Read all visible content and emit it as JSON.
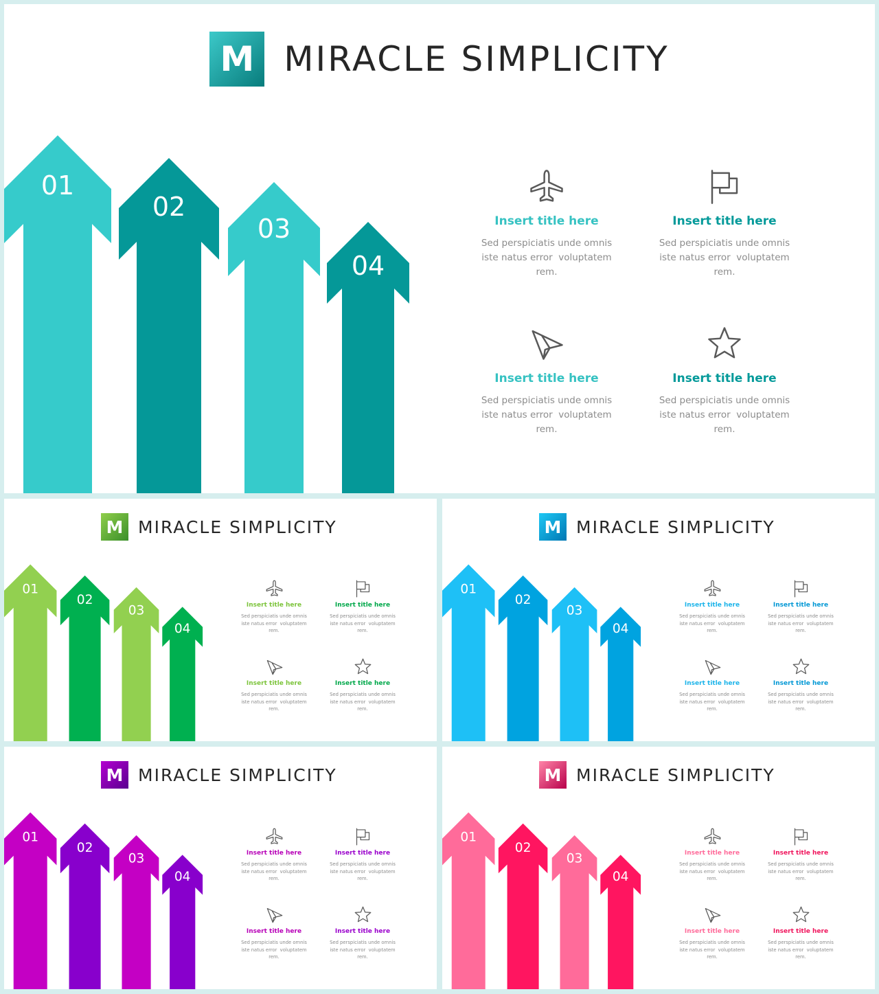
{
  "brand": {
    "logo_letter": "M",
    "title": "MIRACLE SIMPLICITY"
  },
  "arrow_labels": [
    "01",
    "02",
    "03",
    "04"
  ],
  "icons": [
    "airplane-icon",
    "flag-icon",
    "paper-plane-icon",
    "star-icon"
  ],
  "features": [
    {
      "title": "Insert title here",
      "lines": [
        "Sed perspiciatis unde omnis",
        "iste natus error  voluptatem",
        "rem."
      ]
    },
    {
      "title": "Insert title here",
      "lines": [
        "Sed perspiciatis unde omnis",
        "iste natus error  voluptatem",
        "rem."
      ]
    },
    {
      "title": "Insert title here",
      "lines": [
        "Sed perspiciatis unde omnis",
        "iste natus error  voluptatem",
        "rem."
      ]
    },
    {
      "title": "Insert title here",
      "lines": [
        "Sed perspiciatis unde omnis",
        "iste natus error  voluptatem",
        "rem."
      ]
    }
  ],
  "themes": [
    {
      "name": "teal",
      "logo_from": "#3cc9c9",
      "logo_to": "#087c7c",
      "arrow_light": "#36cbcb",
      "arrow_dark": "#059898",
      "title_light": "#36c2c2",
      "title_dark": "#049a9a"
    },
    {
      "name": "green",
      "logo_from": "#8fce4a",
      "logo_to": "#3a8f2a",
      "arrow_light": "#92d050",
      "arrow_dark": "#00b050",
      "title_light": "#7dc43c",
      "title_dark": "#00a84a"
    },
    {
      "name": "blue",
      "logo_from": "#1ec8f5",
      "logo_to": "#0077b3",
      "arrow_light": "#1ec0f6",
      "arrow_dark": "#00a3e0",
      "title_light": "#1cb4ea",
      "title_dark": "#0298d5"
    },
    {
      "name": "purple",
      "logo_from": "#b400d0",
      "logo_to": "#5a0090",
      "arrow_light": "#c400c4",
      "arrow_dark": "#8800cc",
      "title_light": "#b800b8",
      "title_dark": "#9a00cc"
    },
    {
      "name": "pink",
      "logo_from": "#ff85a8",
      "logo_to": "#b8004a",
      "arrow_light": "#ff6b9a",
      "arrow_dark": "#ff1560",
      "title_light": "#ff6b9a",
      "title_dark": "#f0145c"
    }
  ]
}
